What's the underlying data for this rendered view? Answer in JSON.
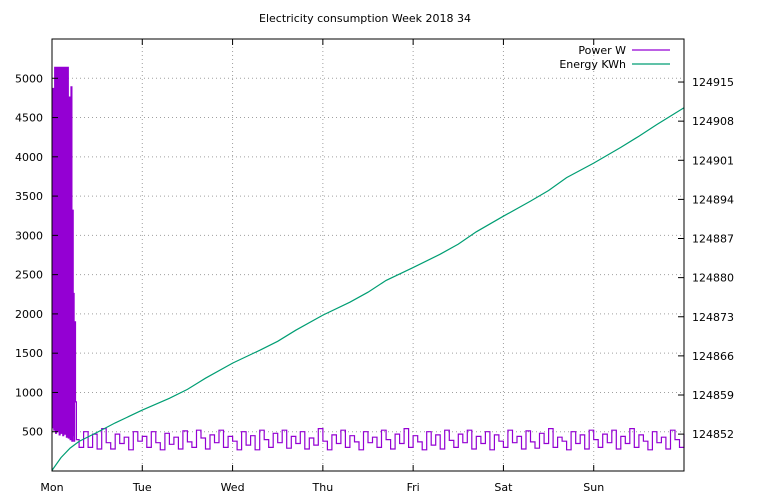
{
  "chart_data": {
    "type": "line",
    "title": "Electricity consumption Week 2018 34",
    "x": {
      "tick_labels": [
        "Mon",
        "Tue",
        "Wed",
        "Thu",
        "Fri",
        "Sat",
        "Sun"
      ],
      "range": [
        0,
        7
      ]
    },
    "y_left": {
      "range": [
        0,
        5500
      ],
      "ticks": [
        500,
        1000,
        1500,
        2000,
        2500,
        3000,
        3500,
        4000,
        4500,
        5000
      ]
    },
    "y_right": {
      "range": [
        124845.4,
        124922.7
      ],
      "ticks": [
        124852,
        124859,
        124866,
        124873,
        124880,
        124887,
        124894,
        124901,
        124908,
        124915
      ]
    },
    "grid": true,
    "legend_position": "top-right",
    "series": [
      {
        "name": "Power W",
        "axis": "left",
        "color": "#9400d3",
        "style": "step",
        "points": [
          [
            0.0,
            550
          ],
          [
            0.01,
            4870
          ],
          [
            0.02,
            520
          ],
          [
            0.03,
            5140
          ],
          [
            0.04,
            480
          ],
          [
            0.05,
            5140
          ],
          [
            0.06,
            500
          ],
          [
            0.07,
            5140
          ],
          [
            0.08,
            460
          ],
          [
            0.09,
            5140
          ],
          [
            0.1,
            480
          ],
          [
            0.11,
            5140
          ],
          [
            0.12,
            450
          ],
          [
            0.13,
            5140
          ],
          [
            0.14,
            470
          ],
          [
            0.15,
            5140
          ],
          [
            0.16,
            430
          ],
          [
            0.17,
            5140
          ],
          [
            0.18,
            420
          ],
          [
            0.19,
            4760
          ],
          [
            0.2,
            400
          ],
          [
            0.21,
            4890
          ],
          [
            0.22,
            380
          ],
          [
            0.23,
            3320
          ],
          [
            0.235,
            450
          ],
          [
            0.24,
            2260
          ],
          [
            0.245,
            380
          ],
          [
            0.25,
            1900
          ],
          [
            0.26,
            880
          ],
          [
            0.27,
            400
          ],
          [
            0.3,
            300
          ],
          [
            0.35,
            500
          ],
          [
            0.4,
            300
          ],
          [
            0.45,
            470
          ],
          [
            0.5,
            280
          ],
          [
            0.55,
            540
          ],
          [
            0.6,
            360
          ],
          [
            0.65,
            280
          ],
          [
            0.7,
            470
          ],
          [
            0.75,
            350
          ],
          [
            0.8,
            430
          ],
          [
            0.85,
            270
          ],
          [
            0.9,
            500
          ],
          [
            0.95,
            380
          ],
          [
            1.0,
            440
          ],
          [
            1.05,
            300
          ],
          [
            1.1,
            500
          ],
          [
            1.15,
            360
          ],
          [
            1.2,
            270
          ],
          [
            1.25,
            480
          ],
          [
            1.3,
            340
          ],
          [
            1.35,
            430
          ],
          [
            1.4,
            280
          ],
          [
            1.45,
            510
          ],
          [
            1.5,
            370
          ],
          [
            1.55,
            300
          ],
          [
            1.6,
            520
          ],
          [
            1.65,
            420
          ],
          [
            1.7,
            280
          ],
          [
            1.75,
            460
          ],
          [
            1.8,
            360
          ],
          [
            1.85,
            520
          ],
          [
            1.9,
            300
          ],
          [
            1.95,
            440
          ],
          [
            2.0,
            380
          ],
          [
            2.05,
            270
          ],
          [
            2.1,
            500
          ],
          [
            2.15,
            330
          ],
          [
            2.2,
            450
          ],
          [
            2.25,
            270
          ],
          [
            2.3,
            520
          ],
          [
            2.35,
            400
          ],
          [
            2.4,
            300
          ],
          [
            2.45,
            480
          ],
          [
            2.5,
            360
          ],
          [
            2.55,
            520
          ],
          [
            2.6,
            290
          ],
          [
            2.65,
            440
          ],
          [
            2.7,
            350
          ],
          [
            2.75,
            500
          ],
          [
            2.8,
            280
          ],
          [
            2.85,
            420
          ],
          [
            2.9,
            330
          ],
          [
            2.95,
            540
          ],
          [
            3.0,
            380
          ],
          [
            3.05,
            270
          ],
          [
            3.1,
            460
          ],
          [
            3.15,
            350
          ],
          [
            3.2,
            520
          ],
          [
            3.25,
            300
          ],
          [
            3.3,
            450
          ],
          [
            3.35,
            370
          ],
          [
            3.4,
            270
          ],
          [
            3.45,
            500
          ],
          [
            3.5,
            360
          ],
          [
            3.55,
            430
          ],
          [
            3.6,
            300
          ],
          [
            3.65,
            520
          ],
          [
            3.7,
            400
          ],
          [
            3.75,
            280
          ],
          [
            3.8,
            470
          ],
          [
            3.85,
            350
          ],
          [
            3.9,
            540
          ],
          [
            3.95,
            300
          ],
          [
            4.0,
            450
          ],
          [
            4.05,
            370
          ],
          [
            4.1,
            270
          ],
          [
            4.15,
            500
          ],
          [
            4.2,
            330
          ],
          [
            4.25,
            460
          ],
          [
            4.3,
            280
          ],
          [
            4.35,
            520
          ],
          [
            4.4,
            390
          ],
          [
            4.45,
            300
          ],
          [
            4.5,
            470
          ],
          [
            4.55,
            360
          ],
          [
            4.6,
            520
          ],
          [
            4.65,
            280
          ],
          [
            4.7,
            440
          ],
          [
            4.75,
            350
          ],
          [
            4.8,
            500
          ],
          [
            4.85,
            270
          ],
          [
            4.9,
            460
          ],
          [
            4.95,
            380
          ],
          [
            5.0,
            300
          ],
          [
            5.05,
            520
          ],
          [
            5.1,
            360
          ],
          [
            5.15,
            440
          ],
          [
            5.2,
            280
          ],
          [
            5.25,
            510
          ],
          [
            5.3,
            370
          ],
          [
            5.35,
            290
          ],
          [
            5.4,
            480
          ],
          [
            5.45,
            350
          ],
          [
            5.5,
            540
          ],
          [
            5.55,
            300
          ],
          [
            5.6,
            430
          ],
          [
            5.65,
            380
          ],
          [
            5.7,
            270
          ],
          [
            5.75,
            500
          ],
          [
            5.8,
            350
          ],
          [
            5.85,
            460
          ],
          [
            5.9,
            280
          ],
          [
            5.95,
            520
          ],
          [
            6.0,
            400
          ],
          [
            6.05,
            300
          ],
          [
            6.1,
            470
          ],
          [
            6.15,
            360
          ],
          [
            6.2,
            520
          ],
          [
            6.25,
            280
          ],
          [
            6.3,
            440
          ],
          [
            6.35,
            350
          ],
          [
            6.4,
            540
          ],
          [
            6.45,
            300
          ],
          [
            6.5,
            460
          ],
          [
            6.55,
            380
          ],
          [
            6.6,
            270
          ],
          [
            6.65,
            500
          ],
          [
            6.7,
            360
          ],
          [
            6.75,
            430
          ],
          [
            6.8,
            280
          ],
          [
            6.85,
            520
          ],
          [
            6.9,
            400
          ],
          [
            6.95,
            300
          ],
          [
            7.0,
            470
          ]
        ]
      },
      {
        "name": "Energy KWh",
        "axis": "right",
        "color": "#009e73",
        "style": "line",
        "points": [
          [
            0.0,
            124845.5
          ],
          [
            0.1,
            124847.8
          ],
          [
            0.2,
            124849.5
          ],
          [
            0.3,
            124850.7
          ],
          [
            0.5,
            124852.3
          ],
          [
            0.7,
            124854.0
          ],
          [
            1.0,
            124856.3
          ],
          [
            1.3,
            124858.4
          ],
          [
            1.5,
            124860.0
          ],
          [
            1.7,
            124862.0
          ],
          [
            2.0,
            124864.7
          ],
          [
            2.3,
            124867.0
          ],
          [
            2.5,
            124868.6
          ],
          [
            2.7,
            124870.6
          ],
          [
            3.0,
            124873.3
          ],
          [
            3.3,
            124875.6
          ],
          [
            3.5,
            124877.4
          ],
          [
            3.7,
            124879.5
          ],
          [
            4.0,
            124881.8
          ],
          [
            4.3,
            124884.2
          ],
          [
            4.5,
            124886.0
          ],
          [
            4.7,
            124888.2
          ],
          [
            5.0,
            124891.0
          ],
          [
            5.3,
            124893.7
          ],
          [
            5.5,
            124895.6
          ],
          [
            5.7,
            124897.9
          ],
          [
            6.0,
            124900.5
          ],
          [
            6.3,
            124903.3
          ],
          [
            6.5,
            124905.3
          ],
          [
            6.7,
            124907.4
          ],
          [
            7.0,
            124910.4
          ]
        ]
      }
    ]
  }
}
